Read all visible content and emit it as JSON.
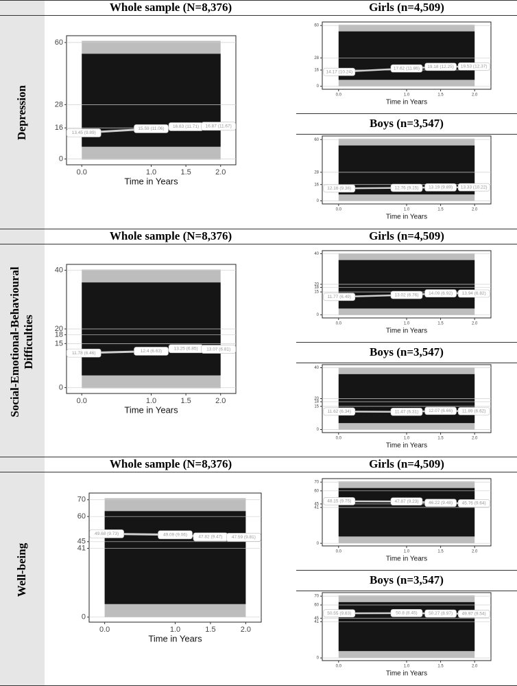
{
  "row_labels": [
    "Depression",
    "Social-Emotional-Behavioural Difficulties",
    "Well-being"
  ],
  "chart_data": [
    {
      "type": "line",
      "title": "Whole sample (N=8,376)",
      "xlabel": "Time in Years",
      "x": [
        0,
        1,
        1.5,
        2
      ],
      "xlim": [
        -0.22,
        2.22
      ],
      "xticks": [
        {
          "value": 0,
          "label": "0.0"
        },
        {
          "value": 1,
          "label": "1.0"
        },
        {
          "value": 1.5,
          "label": "1.5"
        },
        {
          "value": 2,
          "label": "2.0"
        }
      ],
      "ylim": [
        -3,
        63.5
      ],
      "yticks": [
        0,
        16,
        28,
        60
      ],
      "grid": true,
      "series": [
        {
          "color": "#d0d0d0",
          "values": [
            13.45,
            15.59,
            16.63,
            16.87
          ],
          "value_labels": [
            "13.45 (9.89)",
            "15.59 (11.06)",
            "16.63 (11.71)",
            "16.87 (11.67)"
          ]
        }
      ]
    },
    {
      "type": "line",
      "title": "Girls (n=4,509)",
      "xlabel": "Time in Years",
      "x": [
        0,
        1,
        1.5,
        2
      ],
      "xlim": [
        -0.24,
        2.24
      ],
      "xticks": [
        {
          "value": 0,
          "label": "0.0"
        },
        {
          "value": 1,
          "label": "1.0"
        },
        {
          "value": 1.5,
          "label": "1.5"
        },
        {
          "value": 2,
          "label": "2.0"
        }
      ],
      "ylim": [
        -3,
        63.5
      ],
      "yticks": [
        0,
        16,
        28,
        60
      ],
      "grid": true,
      "series": [
        {
          "color": "#d0d0d0",
          "values": [
            14.17,
            17.62,
            19.18,
            19.53
          ],
          "value_labels": [
            "14.17 (10.24)",
            "17.62 (11.86)",
            "19.18 (12.25)",
            "19.53 (12.37)"
          ]
        }
      ]
    },
    {
      "type": "line",
      "title": "Boys (n=3,547)",
      "xlabel": "Time in Years",
      "x": [
        0,
        1,
        1.5,
        2
      ],
      "xlim": [
        -0.24,
        2.24
      ],
      "xticks": [
        {
          "value": 0,
          "label": "0.0"
        },
        {
          "value": 1,
          "label": "1.0"
        },
        {
          "value": 1.5,
          "label": "1.5"
        },
        {
          "value": 2,
          "label": "2.0"
        }
      ],
      "ylim": [
        -3,
        63.5
      ],
      "yticks": [
        0,
        16,
        28,
        60
      ],
      "grid": true,
      "series": [
        {
          "color": "#d0d0d0",
          "values": [
            12.16,
            12.76,
            13.19,
            13.33
          ],
          "value_labels": [
            "12.16 (9.36)",
            "12.76 (9.15)",
            "13.19 (9.89)",
            "13.33 (10.22)"
          ]
        }
      ]
    },
    {
      "type": "line",
      "title": "Whole sample (N=8,376)",
      "xlabel": "Time in Years",
      "x": [
        0,
        1,
        1.5,
        2
      ],
      "xlim": [
        -0.22,
        2.22
      ],
      "xticks": [
        {
          "value": 0,
          "label": "0.0"
        },
        {
          "value": 1,
          "label": "1.0"
        },
        {
          "value": 1.5,
          "label": "1.5"
        },
        {
          "value": 2,
          "label": "2.0"
        }
      ],
      "ylim": [
        -2,
        42
      ],
      "yticks": [
        0,
        15,
        18,
        20,
        40
      ],
      "grid": true,
      "series": [
        {
          "color": "#d0d0d0",
          "values": [
            11.78,
            12.4,
            13.25,
            13.07
          ],
          "value_labels": [
            "11.78 (6.46)",
            "12.4 (6.63)",
            "13.25 (6.85)",
            "13.07 (6.81)"
          ]
        }
      ]
    },
    {
      "type": "line",
      "title": "Girls (n=4,509)",
      "xlabel": "Time in Years",
      "x": [
        0,
        1,
        1.5,
        2
      ],
      "xlim": [
        -0.24,
        2.24
      ],
      "xticks": [
        {
          "value": 0,
          "label": "0.0"
        },
        {
          "value": 1,
          "label": "1.0"
        },
        {
          "value": 1.5,
          "label": "1.5"
        },
        {
          "value": 2,
          "label": "2.0"
        }
      ],
      "ylim": [
        -2,
        42
      ],
      "yticks": [
        0,
        15,
        18,
        20,
        40
      ],
      "grid": true,
      "series": [
        {
          "color": "#d0d0d0",
          "values": [
            11.77,
            13.02,
            14.09,
            13.94
          ],
          "value_labels": [
            "11.77 (6.49)",
            "13.02 (6.76)",
            "14.09 (6.92)",
            "13.94 (6.82)"
          ]
        }
      ]
    },
    {
      "type": "line",
      "title": "Boys (n=3,547)",
      "xlabel": "Time in Years",
      "x": [
        0,
        1,
        1.5,
        2
      ],
      "xlim": [
        -0.24,
        2.24
      ],
      "xticks": [
        {
          "value": 0,
          "label": "0.0"
        },
        {
          "value": 1,
          "label": "1.0"
        },
        {
          "value": 1.5,
          "label": "1.5"
        },
        {
          "value": 2,
          "label": "2.0"
        }
      ],
      "ylim": [
        -2,
        42
      ],
      "yticks": [
        0,
        15,
        18,
        20,
        40
      ],
      "grid": true,
      "series": [
        {
          "color": "#d0d0d0",
          "values": [
            11.62,
            11.47,
            12.07,
            11.89
          ],
          "value_labels": [
            "11.62 (6.34)",
            "11.47 (6.31)",
            "12.07 (6.66)",
            "11.89 (6.62)"
          ]
        }
      ]
    },
    {
      "type": "line",
      "title": "Whole sample (N=8,376)",
      "xlabel": "Time in Years",
      "x": [
        0,
        1,
        1.5,
        2
      ],
      "xlim": [
        -0.22,
        2.22
      ],
      "xticks": [
        {
          "value": 0,
          "label": "0.0"
        },
        {
          "value": 1,
          "label": "1.0"
        },
        {
          "value": 1.5,
          "label": "1.5"
        },
        {
          "value": 2,
          "label": "2.0"
        }
      ],
      "ylim": [
        -3,
        74
      ],
      "yticks": [
        0,
        41,
        45,
        60,
        70
      ],
      "grid": true,
      "series": [
        {
          "color": "#d0d0d0",
          "values": [
            49.68,
            49.09,
            47.82,
            47.59
          ],
          "value_labels": [
            "49.68 (9.73)",
            "49.09 (9.06)",
            "47.82 (9.47)",
            "47.59 (9.81)"
          ]
        }
      ]
    },
    {
      "type": "line",
      "title": "Girls (n=4,509)",
      "xlabel": "Time in Years",
      "x": [
        0,
        1,
        1.5,
        2
      ],
      "xlim": [
        -0.24,
        2.24
      ],
      "xticks": [
        {
          "value": 0,
          "label": "0.0"
        },
        {
          "value": 1,
          "label": "1.0"
        },
        {
          "value": 1.5,
          "label": "1.5"
        },
        {
          "value": 2,
          "label": "2.0"
        }
      ],
      "ylim": [
        -3,
        74
      ],
      "yticks": [
        0,
        41,
        45,
        60,
        70
      ],
      "grid": true,
      "series": [
        {
          "color": "#d0d0d0",
          "values": [
            48.15,
            47.87,
            46.22,
            45.76
          ],
          "value_labels": [
            "48.15 (9.75)",
            "47.87 (9.23)",
            "46.22 (9.48)",
            "45.76 (9.64)"
          ]
        }
      ]
    },
    {
      "type": "line",
      "title": "Boys (n=3,547)",
      "xlabel": "Time in Years",
      "x": [
        0,
        1,
        1.5,
        2
      ],
      "xlim": [
        -0.24,
        2.24
      ],
      "xticks": [
        {
          "value": 0,
          "label": "0.0"
        },
        {
          "value": 1,
          "label": "1.0"
        },
        {
          "value": 1.5,
          "label": "1.5"
        },
        {
          "value": 2,
          "label": "2.0"
        }
      ],
      "ylim": [
        -3,
        74
      ],
      "yticks": [
        0,
        41,
        45,
        60,
        70
      ],
      "grid": true,
      "series": [
        {
          "color": "#d0d0d0",
          "values": [
            50.55,
            50.8,
            50.27,
            49.97
          ],
          "value_labels": [
            "50.55 (9.83)",
            "50.8 (8.45)",
            "50.27 (8.97)",
            "49.97 (9.54)"
          ]
        }
      ]
    }
  ]
}
